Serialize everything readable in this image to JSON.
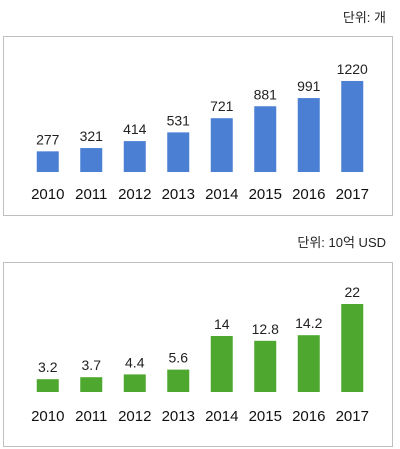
{
  "units": {
    "top": "단위: 개",
    "bottom": "단위: 10억 USD"
  },
  "chart_data": [
    {
      "type": "bar",
      "title": "",
      "xlabel": "",
      "ylabel": "",
      "categories": [
        "2010",
        "2011",
        "2012",
        "2013",
        "2014",
        "2015",
        "2016",
        "2017"
      ],
      "values": [
        277,
        321,
        414,
        531,
        721,
        881,
        991,
        1220
      ],
      "value_labels": [
        "277",
        "321",
        "414",
        "531",
        "721",
        "881",
        "991",
        "1220"
      ],
      "ylim": [
        0,
        1300
      ],
      "grid": false,
      "color": "#4a7fd4"
    },
    {
      "type": "bar",
      "title": "",
      "xlabel": "",
      "ylabel": "",
      "categories": [
        "2010",
        "2011",
        "2012",
        "2013",
        "2014",
        "2015",
        "2016",
        "2017"
      ],
      "values": [
        3.2,
        3.7,
        4.4,
        5.6,
        14,
        12.8,
        14.2,
        22
      ],
      "value_labels": [
        "3.2",
        "3.7",
        "4.4",
        "5.6",
        "14",
        "12.8",
        "14.2",
        "22"
      ],
      "ylim": [
        0,
        23.5
      ],
      "grid": false,
      "color": "#4ea72e"
    }
  ]
}
